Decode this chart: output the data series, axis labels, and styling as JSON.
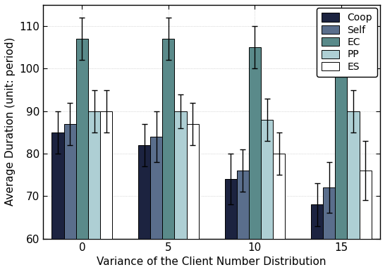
{
  "categories": [
    0,
    5,
    10,
    15
  ],
  "series": {
    "Coop": {
      "values": [
        85,
        82,
        74,
        68
      ],
      "errors": [
        5,
        5,
        6,
        5
      ],
      "color": "#1c2340"
    },
    "Self": {
      "values": [
        87,
        84,
        76,
        72
      ],
      "errors": [
        5,
        6,
        5,
        6
      ],
      "color": "#5a6e8c"
    },
    "EC": {
      "values": [
        107,
        107,
        105,
        107
      ],
      "errors": [
        5,
        5,
        5,
        6
      ],
      "color": "#5a8a8a"
    },
    "PP": {
      "values": [
        90,
        90,
        88,
        90
      ],
      "errors": [
        5,
        4,
        5,
        5
      ],
      "color": "#aecfd4"
    },
    "ES": {
      "values": [
        90,
        87,
        80,
        76
      ],
      "errors": [
        5,
        5,
        5,
        7
      ],
      "color": "#ffffff"
    }
  },
  "xlabel": "Variance of the Client Number Distribution",
  "ylabel": "Average Duration (unit: period)",
  "ylim": [
    60,
    115
  ],
  "yticks": [
    60,
    70,
    80,
    90,
    100,
    110
  ],
  "legend_order": [
    "Coop",
    "Self",
    "EC",
    "PP",
    "ES"
  ],
  "bar_width": 0.14,
  "background_color": "#ffffff",
  "grid_color": "#bbbbbb",
  "error_capsize": 3,
  "error_linewidth": 1.0,
  "figsize": [
    5.46,
    3.86
  ],
  "dpi": 100
}
